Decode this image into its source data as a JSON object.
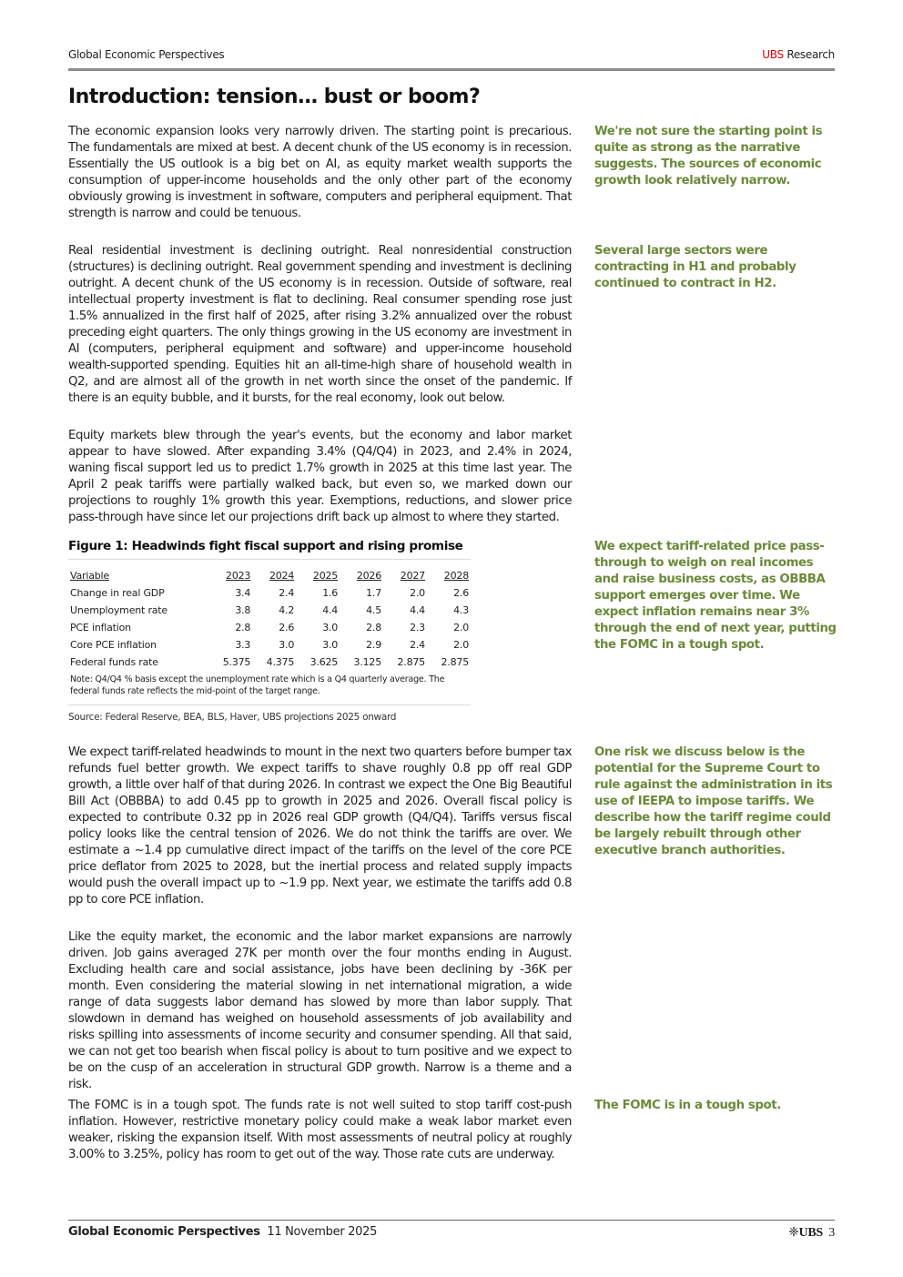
{
  "header": {
    "publication": "Global Economic Perspectives",
    "brand_red": "UBS",
    "brand_rest": " Research",
    "brand_color": "#e60000"
  },
  "title": "Introduction: tension… bust or boom?",
  "paragraphs": [
    "The economic expansion looks very narrowly driven. The starting point is precarious. The fundamentals are mixed at best. A decent chunk of the US economy is in recession. Essentially the US outlook is a big bet on AI, as equity market wealth supports the consumption of upper-income households and the only other part of the economy obviously growing is investment in software, computers and peripheral equipment. That strength is narrow and could be tenuous.",
    "Real residential investment is declining outright. Real nonresidential construction (structures) is declining outright. Real government spending and investment is declining outright. A decent chunk of the US economy is in recession. Outside of software, real intellectual property investment is flat to declining. Real consumer spending rose just 1.5% annualized in the first half of 2025, after rising 3.2% annualized over the robust preceding eight quarters. The only things growing in the US economy are investment in AI (computers, peripheral equipment and software) and upper-income household wealth-supported spending. Equities hit an all-time-high share of household wealth in Q2, and are almost all of the growth in net worth since the onset of the pandemic. If there is an equity bubble, and it bursts, for the real economy, look out below.",
    "Equity markets blew through the year's events, but the economy and labor market appear to have slowed. After expanding 3.4% (Q4/Q4) in 2023, and 2.4% in 2024, waning fiscal support led us to predict 1.7% growth in 2025 at this time last year. The April 2 peak tariffs were partially walked back, but even so, we marked down our projections to roughly 1% growth this year. Exemptions, reductions, and slower price pass-through have since let our projections drift back up almost to where they started.",
    "We expect tariff-related headwinds to mount in the next two quarters before bumper tax refunds fuel better growth. We expect tariffs to shave roughly 0.8 pp off real GDP growth, a little over half of that during 2026. In contrast we expect the One Big Beautiful Bill Act (OBBBA) to add 0.45 pp to growth in 2025 and 2026. Overall fiscal policy is expected to contribute 0.32 pp in 2026 real GDP growth (Q4/Q4). Tariffs versus fiscal policy looks like the central tension of 2026. We do not think the tariffs are over. We estimate a ~1.4 pp cumulative direct impact of the tariffs on the level of the core PCE price deflator from 2025 to 2028, but the inertial process and related supply impacts would push the overall impact up to ~1.9 pp. Next year, we estimate the tariffs add 0.8 pp to core PCE inflation.",
    "Like the equity market, the economic and the labor market expansions are narrowly driven. Job gains averaged 27K per month over the four months ending in August. Excluding health care and social assistance, jobs have been declining by -36K per month. Even considering the material slowing in net international migration, a wide range of data suggests labor demand has slowed by more than labor supply. That slowdown in demand has weighed on household assessments of job availability and risks spilling into assessments of income security and consumer spending. All that said, we can not get too bearish when fiscal policy is about to turn positive and we expect to be on the cusp of an acceleration in structural GDP growth. Narrow is a theme and a risk.",
    "The FOMC is in a tough spot. The funds rate is not well suited to stop tariff cost-push inflation. However, restrictive monetary policy could make a weak labor market even weaker, risking the expansion itself. With most assessments of neutral policy at roughly 3.00% to 3.25%, policy has room to get out of the way. Those rate cuts are underway."
  ],
  "sidenotes": [
    "We're not sure the starting point is quite as strong as the narrative suggests. The sources of economic growth look relatively narrow.",
    "Several large sectors were contracting in H1 and probably continued to contract in H2.",
    "We expect tariff-related price pass-through to weigh on real incomes and raise business costs, as OBBBA support emerges over time. We expect inflation remains near 3% through the end of next year, putting the FOMC in a tough spot.",
    "One risk we discuss below is the potential for the Supreme Court to rule against the administration in its use of IEEPA to impose tariffs. We describe how the tariff regime could be largely rebuilt through other executive branch authorities.",
    "The FOMC is in a tough spot."
  ],
  "sidenote_color": "#6b8a3a",
  "figure": {
    "title": "Figure 1: Headwinds fight fiscal support and rising promise",
    "columns": [
      "Variable",
      "2023",
      "2024",
      "2025",
      "2026",
      "2027",
      "2028"
    ],
    "rows": [
      [
        "Change in real GDP",
        "3.4",
        "2.4",
        "1.6",
        "1.7",
        "2.0",
        "2.6"
      ],
      [
        "Unemployment rate",
        "3.8",
        "4.2",
        "4.4",
        "4.5",
        "4.4",
        "4.3"
      ],
      [
        "PCE inflation",
        "2.8",
        "2.6",
        "3.0",
        "2.8",
        "2.3",
        "2.0"
      ],
      [
        "Core PCE inflation",
        "3.3",
        "3.0",
        "3.0",
        "2.9",
        "2.4",
        "2.0"
      ],
      [
        "Federal funds rate",
        "5.375",
        "4.375",
        "3.625",
        "3.125",
        "2.875",
        "2.875"
      ]
    ],
    "note": "Note: Q4/Q4 % basis except the unemployment rate which is a Q4 quarterly average. The federal funds rate reflects the mid-point of the target range.",
    "source": "Source: Federal Reserve, BEA, BLS, Haver, UBS projections 2025 onward"
  },
  "footer": {
    "publication": "Global Economic Perspectives",
    "date": "11 November 2025",
    "logo": "UBS",
    "page": "3",
    "logo_icon": "ubs-keys-icon"
  }
}
